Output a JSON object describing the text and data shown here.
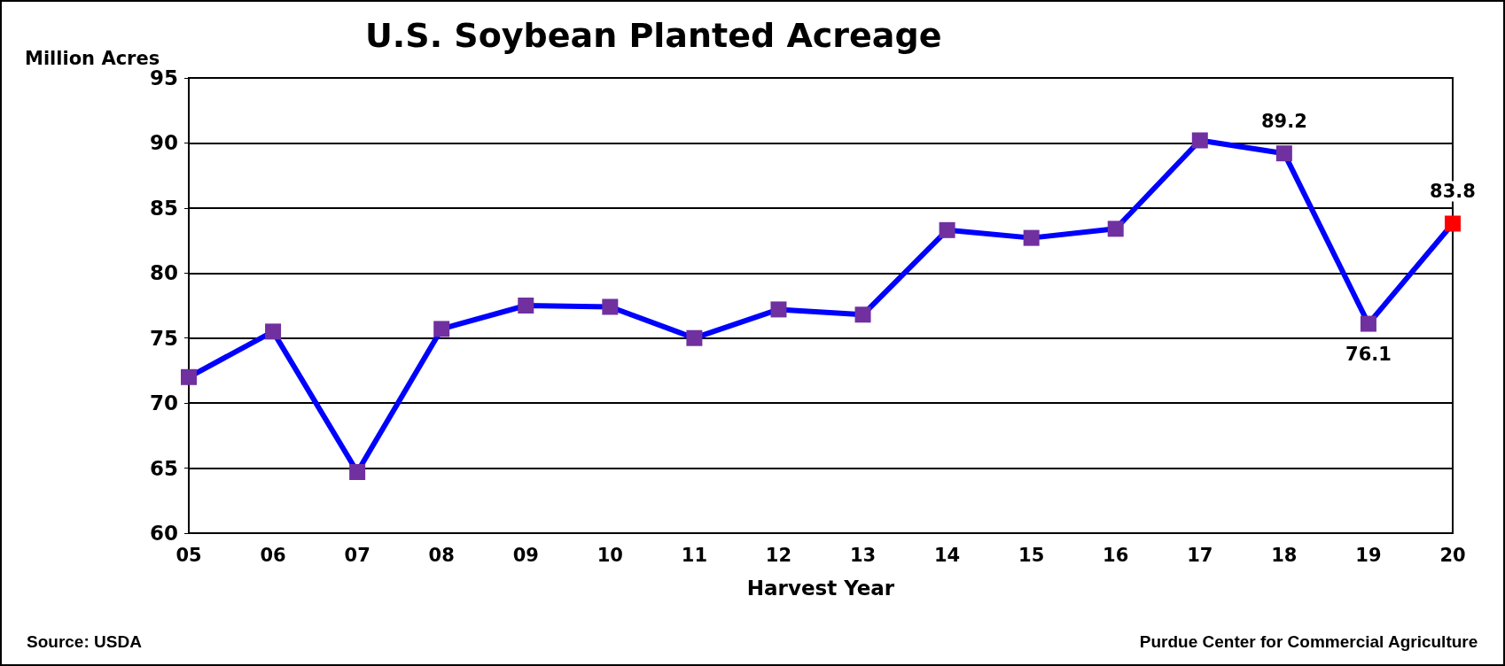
{
  "chart_data": {
    "type": "line",
    "title": "U.S. Soybean Planted Acreage",
    "xlabel": "Harvest Year",
    "ylabel": "Million Acres",
    "categories": [
      "05",
      "06",
      "07",
      "08",
      "09",
      "10",
      "11",
      "12",
      "13",
      "14",
      "15",
      "16",
      "17",
      "18",
      "19",
      "20"
    ],
    "series": [
      {
        "color": "#0000ff",
        "colors": [
          "#7030a0",
          "#7030a0",
          "#7030a0",
          "#7030a0",
          "#7030a0",
          "#7030a0",
          "#7030a0",
          "#7030a0",
          "#7030a0",
          "#7030a0",
          "#7030a0",
          "#7030a0",
          "#7030a0",
          "#7030a0",
          "#7030a0",
          "#ff0000"
        ],
        "values": [
          72.0,
          75.5,
          64.7,
          75.7,
          77.5,
          77.4,
          75.0,
          77.2,
          76.8,
          83.3,
          82.7,
          83.4,
          90.2,
          89.2,
          76.1,
          83.8
        ],
        "value_labels": [
          null,
          null,
          null,
          null,
          null,
          null,
          null,
          null,
          null,
          null,
          null,
          null,
          null,
          "89.2",
          "76.1",
          "83.8"
        ]
      }
    ],
    "ylim": [
      60,
      95
    ],
    "yticks": [
      60,
      65,
      70,
      75,
      80,
      85,
      90,
      95
    ],
    "grid": "y",
    "marker": "square",
    "line_style": "solid",
    "annotations": [
      "Source: USDA",
      "Purdue Center for Commercial Agriculture"
    ]
  }
}
